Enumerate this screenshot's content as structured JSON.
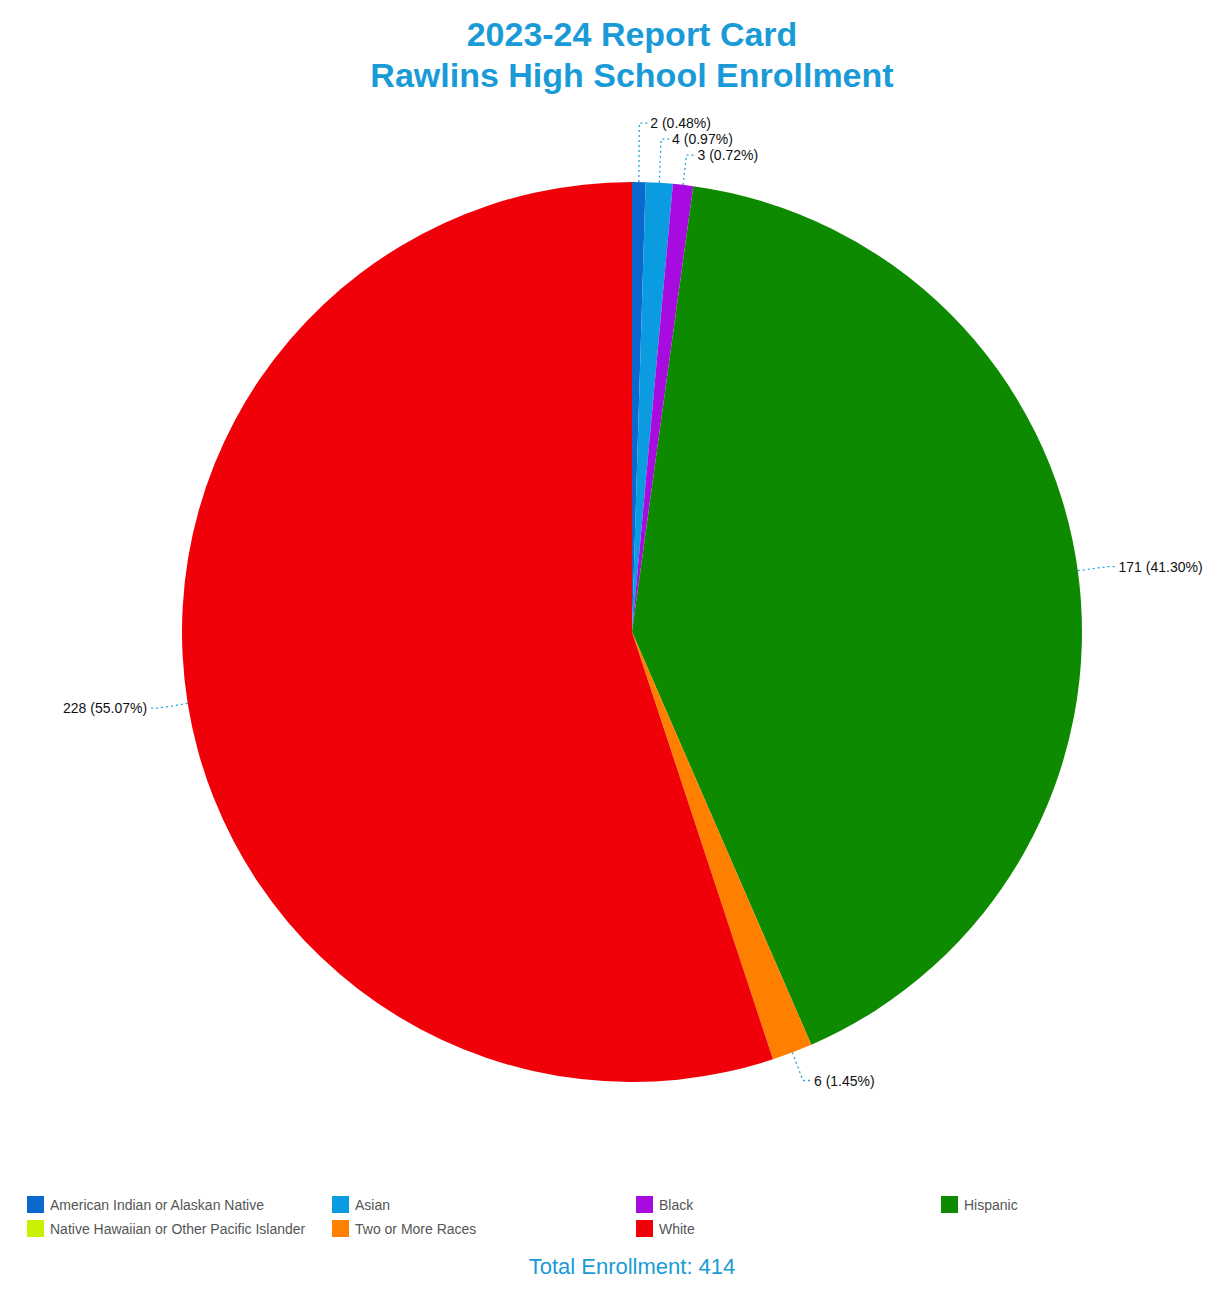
{
  "chart_data": {
    "type": "pie",
    "title": "2023-24 Report Card\nRawlins High School Enrollment",
    "categories": [
      "American Indian or Alaskan Native",
      "Asian",
      "Black",
      "Hispanic",
      "Native Hawaiian or Other Pacific Islander",
      "Two or More Races",
      "White"
    ],
    "values": [
      2,
      4,
      3,
      171,
      0,
      6,
      228
    ],
    "value_labels": [
      "2 (0.48%)",
      "4 (0.97%)",
      "3 (0.72%)",
      "171 (41.30%)",
      null,
      "6 (1.45%)",
      "228 (55.07%)"
    ],
    "colors": [
      "#0b68cc",
      "#0a9be0",
      "#a80be0",
      "#0d8a00",
      "#c8f000",
      "#ff8000",
      "#f00008"
    ],
    "data_labels": true,
    "legend": "bottom",
    "annotations": [
      "Total Enrollment: 414"
    ]
  }
}
